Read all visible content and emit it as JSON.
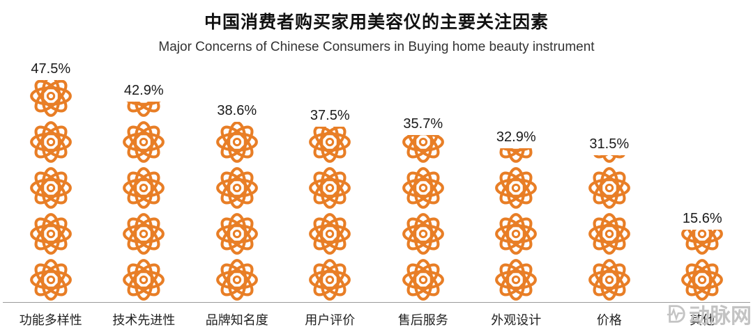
{
  "title": "中国消费者购买家用美容仪的主要关注因素",
  "subtitle": "Major Concerns of Chinese Consumers in Buying home beauty instrument",
  "watermark": "动脉网",
  "accent_color": "#E87E26",
  "chart_data": {
    "type": "bar",
    "style": "pictogram",
    "orientation": "vertical",
    "title": "中国消费者购买家用美容仪的主要关注因素",
    "subtitle": "Major Concerns of Chinese Consumers in Buying home beauty instrument",
    "categories": [
      "功能多样性",
      "技术先进性",
      "品牌知名度",
      "用户评价",
      "售后服务",
      "外观设计",
      "价格",
      "其他"
    ],
    "values": [
      47.5,
      42.9,
      38.6,
      37.5,
      35.7,
      32.9,
      31.5,
      15.6
    ],
    "value_labels": [
      "47.5%",
      "42.9%",
      "38.6%",
      "37.5%",
      "35.7%",
      "32.9%",
      "31.5%",
      "15.6%"
    ],
    "xlabel": "",
    "ylabel": "",
    "ylim": [
      0,
      50
    ],
    "grid": false,
    "legend": "none",
    "icon": "orange-flower-knot"
  }
}
